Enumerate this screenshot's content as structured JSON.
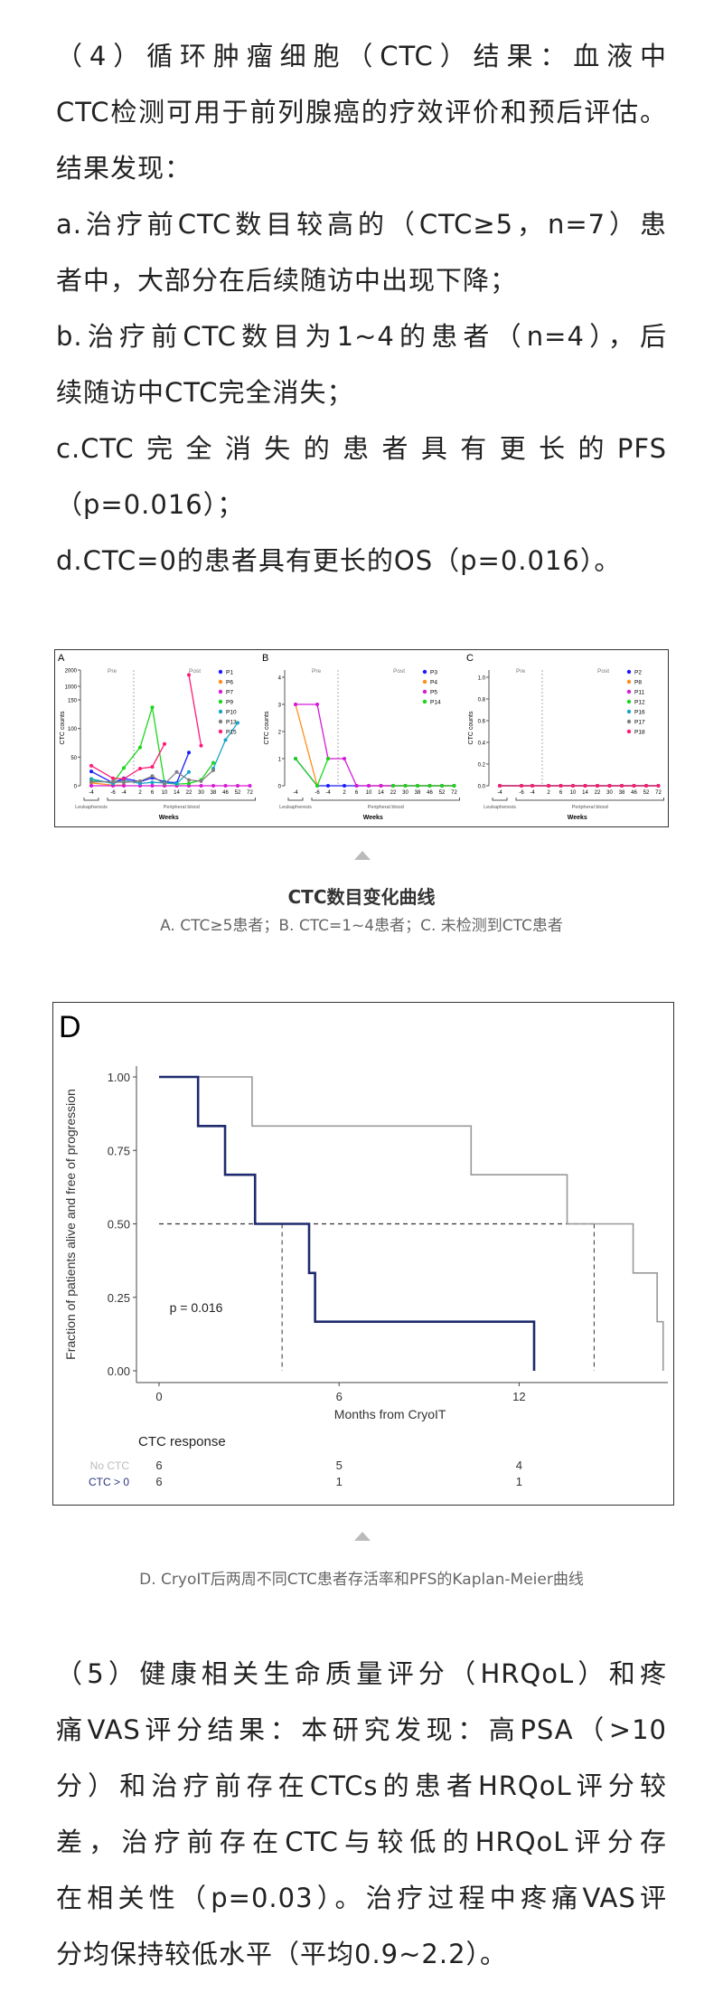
{
  "section4": {
    "lines": [
      "（4）循环肿瘤细胞（CTC）结果：血液中",
      "CTC检测可用于前列腺癌的疗效评价和预后评估。",
      "结果发现：",
      "a.治疗前CTC数目较高的（CTC≥5，n=7）患",
      "者中，大部分在后续随访中出现下降；",
      "b.治疗前CTC数目为1~4的患者（n=4），后",
      "续随访中CTC完全消失；",
      "c.CTC完全消失的患者具有更长的PFS",
      "（p=0.016）；",
      "d.CTC=0的患者具有更长的OS（p=0.016）。"
    ]
  },
  "figure1": {
    "caption_title": "CTC数目变化曲线",
    "caption_sub": "A. CTC≥5患者；B. CTC=1~4患者；C. 未检测到CTC患者"
  },
  "figure2": {
    "caption": "D. CryoIT后两周不同CTC患者存活率和PFS的Kaplan-Meier曲线"
  },
  "section5": {
    "lines": [
      "（5）健康相关生命质量评分（HRQoL）和疼",
      "痛VAS评分结果：本研究发现：高PSA（>10",
      "分）和治疗前存在CTCs的患者HRQoL评分较",
      "差，治疗前存在CTC与较低的HRQoL评分存",
      "在相关性（p=0.03）。治疗过程中疼痛VAS评",
      "分均保持较低水平（平均0.9~2.2）。"
    ]
  },
  "chart_data": [
    {
      "panel": "A",
      "type": "line",
      "ylabel": "CTC counts",
      "xlabel": "Weeks",
      "categories": [
        "-4",
        "-6",
        "-4",
        "2",
        "6",
        "10",
        "14",
        "22",
        "30",
        "38",
        "46",
        "52",
        "72"
      ],
      "group_labels": [
        "Leukapheresis",
        "Peripheral blood"
      ],
      "phase_labels": [
        "Pre",
        "Post"
      ],
      "yticks": [
        0,
        50,
        100,
        150,
        1000,
        2000
      ],
      "series": [
        {
          "name": "P1",
          "color": "#1a1aff",
          "values": [
            25,
            5,
            13,
            7,
            14,
            7,
            5,
            58,
            null,
            null,
            null,
            null,
            null
          ]
        },
        {
          "name": "P6",
          "color": "#ff8c1a",
          "values": [
            5,
            1,
            1,
            null,
            null,
            null,
            null,
            null,
            null,
            null,
            null,
            null,
            null
          ]
        },
        {
          "name": "P7",
          "color": "#d61ad6",
          "values": [
            0,
            0,
            0,
            0,
            0,
            0,
            0,
            0,
            0,
            0,
            0,
            0,
            0
          ]
        },
        {
          "name": "P9",
          "color": "#1ad61a",
          "values": [
            10,
            5,
            31,
            67,
            137,
            5,
            3,
            4,
            10,
            40,
            null,
            null,
            null
          ]
        },
        {
          "name": "P10",
          "color": "#1aa3c8",
          "values": [
            12,
            4,
            10,
            4,
            6,
            5,
            4,
            24,
            null,
            30,
            80,
            110,
            null
          ]
        },
        {
          "name": "P13",
          "color": "#808080",
          "values": [
            7,
            7,
            6,
            8,
            17,
            3,
            24,
            10,
            8,
            27,
            null,
            null,
            null
          ]
        },
        {
          "name": "P15",
          "color": "#ff1a75",
          "values": [
            35,
            13,
            12,
            30,
            33,
            73,
            null,
            1700,
            70,
            null,
            null,
            null,
            null
          ]
        }
      ]
    },
    {
      "panel": "B",
      "type": "line",
      "ylabel": "CTC counts",
      "xlabel": "Weeks",
      "categories": [
        "-4",
        "-6",
        "-4",
        "2",
        "6",
        "10",
        "14",
        "22",
        "30",
        "38",
        "46",
        "52",
        "72"
      ],
      "group_labels": [
        "Leukapheresis",
        "Peripheral blood"
      ],
      "phase_labels": [
        "Pre",
        "Post"
      ],
      "yticks": [
        0,
        1,
        2,
        3,
        4
      ],
      "series": [
        {
          "name": "P3",
          "color": "#1a1aff",
          "values": [
            1,
            0,
            0,
            0,
            0,
            0,
            0,
            0,
            0,
            0,
            0,
            0,
            0
          ]
        },
        {
          "name": "P4",
          "color": "#ff8c1a",
          "values": [
            3,
            0,
            null,
            null,
            null,
            0,
            0,
            0,
            0,
            0,
            0,
            0,
            0
          ]
        },
        {
          "name": "P5",
          "color": "#d61ad6",
          "values": [
            3,
            3,
            1,
            1,
            0,
            0,
            0,
            0,
            0,
            0,
            0,
            0,
            0
          ]
        },
        {
          "name": "P14",
          "color": "#1ad61a",
          "values": [
            1,
            0,
            1,
            null,
            null,
            null,
            null,
            0,
            0,
            0,
            0,
            0,
            0
          ]
        }
      ]
    },
    {
      "panel": "C",
      "type": "line",
      "ylabel": "CTC counts",
      "xlabel": "Weeks",
      "categories": [
        "-4",
        "-6",
        "-4",
        "2",
        "6",
        "10",
        "14",
        "22",
        "30",
        "38",
        "46",
        "52",
        "72"
      ],
      "group_labels": [
        "Leukapheresis",
        "Peripheral blood"
      ],
      "phase_labels": [
        "Pre",
        "Post"
      ],
      "yticks": [
        0.0,
        0.2,
        0.4,
        0.6,
        0.8,
        1.0
      ],
      "series": [
        {
          "name": "P2",
          "color": "#1a1aff",
          "values": [
            0,
            0,
            0,
            0,
            0,
            0,
            0,
            0,
            0,
            0,
            0,
            0,
            0
          ]
        },
        {
          "name": "P8",
          "color": "#ff8c1a",
          "values": [
            0,
            0,
            0,
            0,
            0,
            0,
            0,
            0,
            0,
            0,
            0,
            0,
            0
          ]
        },
        {
          "name": "P11",
          "color": "#d61ad6",
          "values": [
            0,
            0,
            0,
            0,
            0,
            0,
            0,
            0,
            0,
            0,
            0,
            0,
            0
          ]
        },
        {
          "name": "P12",
          "color": "#1ad61a",
          "values": [
            0,
            0,
            0,
            0,
            0,
            0,
            0,
            0,
            0,
            0,
            0,
            0,
            0
          ]
        },
        {
          "name": "P16",
          "color": "#1aa3c8",
          "values": [
            0,
            0,
            0,
            0,
            0,
            0,
            0,
            0,
            0,
            0,
            0,
            0,
            0
          ]
        },
        {
          "name": "P17",
          "color": "#808080",
          "values": [
            0,
            0,
            0,
            0,
            0,
            0,
            0,
            0,
            0,
            0,
            0,
            0,
            0
          ]
        },
        {
          "name": "P18",
          "color": "#ff1a75",
          "values": [
            0,
            0,
            0,
            0,
            0,
            0,
            0,
            0,
            0,
            0,
            0,
            0,
            0
          ]
        }
      ]
    },
    {
      "panel": "D",
      "type": "line",
      "title": "D",
      "ylabel": "Fraction of patients alive and free of progression",
      "xlabel": "Months from CryoIT",
      "xticks": [
        0,
        6,
        12
      ],
      "yticks": [
        "0.00",
        "0.25",
        "0.50",
        "0.75",
        "1.00"
      ],
      "xlim": [
        0,
        17
      ],
      "ylim": [
        0,
        1
      ],
      "p_value_label": "p = 0.016",
      "series": [
        {
          "name": "No CTC",
          "color": "#999999",
          "steps": [
            [
              0,
              1
            ],
            [
              3.1,
              0.833
            ],
            [
              10.4,
              0.667
            ],
            [
              13.6,
              0.5
            ],
            [
              15.8,
              0.333
            ],
            [
              16.6,
              0.167
            ],
            [
              16.8,
              0
            ]
          ]
        },
        {
          "name": "CTC > 0",
          "color": "#1f2a6e",
          "steps": [
            [
              0,
              1
            ],
            [
              1.3,
              0.833
            ],
            [
              2.2,
              0.667
            ],
            [
              3.2,
              0.5
            ],
            [
              5.0,
              0.333
            ],
            [
              5.2,
              0.167
            ],
            [
              12.5,
              0
            ]
          ]
        }
      ],
      "medians": [
        4.1,
        14.5
      ],
      "risk_table": {
        "title": "CTC response",
        "rows": [
          {
            "label": "No CTC",
            "color": "#bbbbbb",
            "counts": [
              "6",
              "5",
              "4"
            ]
          },
          {
            "label": "CTC > 0",
            "color": "#2a3580",
            "counts": [
              "6",
              "1",
              "1"
            ]
          }
        ]
      }
    }
  ]
}
